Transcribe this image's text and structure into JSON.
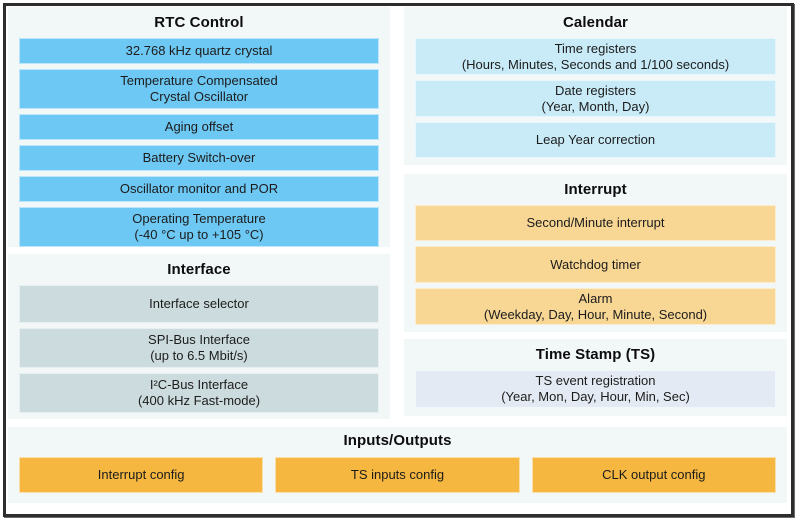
{
  "colors": {
    "rtc_block_blue": "#6dc8f3",
    "interface_block_gray": "#ccdcde",
    "calendar_block_blue": "#c9ebf8",
    "interrupt_block_orange": "#f8d795",
    "timestamp_block_gray": "#e4eaf3",
    "io_block_orange": "#f6b741",
    "panel_background": "#f2f7f8",
    "frame_border": "#2d2d2d"
  },
  "panels": {
    "rtc_control": {
      "title": "RTC Control",
      "blocks": [
        {
          "line1": "32.768 kHz quartz crystal"
        },
        {
          "line1": "Temperature Compensated",
          "line2": "Crystal Oscillator"
        },
        {
          "line1": "Aging offset"
        },
        {
          "line1": "Battery Switch-over"
        },
        {
          "line1": "Oscillator monitor and POR"
        },
        {
          "line1": "Operating Temperature",
          "line2": "(-40 °C up to +105 °C)"
        }
      ]
    },
    "interface": {
      "title": "Interface",
      "blocks": [
        {
          "line1": "Interface selector"
        },
        {
          "line1": "SPI-Bus Interface",
          "line2": "(up to 6.5 Mbit/s)"
        },
        {
          "line1": "I²C-Bus Interface",
          "line2": "(400 kHz Fast-mode)"
        }
      ]
    },
    "calendar": {
      "title": "Calendar",
      "blocks": [
        {
          "line1": "Time registers",
          "line2": "(Hours, Minutes, Seconds and 1/100 seconds)"
        },
        {
          "line1": "Date registers",
          "line2": "(Year, Month, Day)"
        },
        {
          "line1": "Leap Year correction"
        }
      ]
    },
    "interrupt": {
      "title": "Interrupt",
      "blocks": [
        {
          "line1": "Second/Minute interrupt"
        },
        {
          "line1": "Watchdog timer"
        },
        {
          "line1": "Alarm",
          "line2": "(Weekday, Day, Hour, Minute, Second)"
        }
      ]
    },
    "time_stamp": {
      "title": "Time Stamp (TS)",
      "blocks": [
        {
          "line1": "TS event registration",
          "line2": "(Year, Mon, Day, Hour, Min, Sec)"
        }
      ]
    },
    "inputs_outputs": {
      "title": "Inputs/Outputs",
      "blocks": [
        {
          "line1": "Interrupt config"
        },
        {
          "line1": "TS inputs config"
        },
        {
          "line1": "CLK output config"
        }
      ]
    }
  }
}
